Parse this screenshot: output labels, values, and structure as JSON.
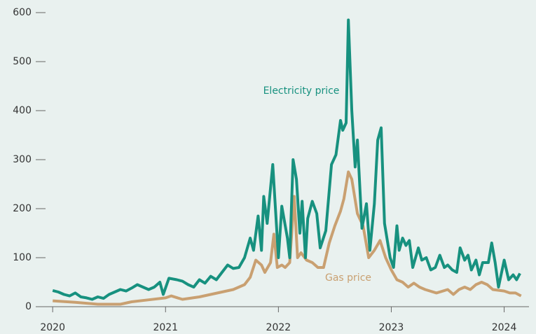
{
  "chart_data": {
    "type": "line",
    "annotations": [
      "Electricity price",
      "Gas price"
    ],
    "xlim": [
      2019.85,
      2024.22
    ],
    "xticks": [
      2020,
      2021,
      2022,
      2023,
      2024
    ],
    "ylim": [
      0,
      600
    ],
    "yticks": [
      0,
      100,
      200,
      300,
      400,
      500,
      600
    ],
    "series": [
      {
        "name": "Electricity price",
        "color": "#17917f",
        "x": [
          2020.0,
          2020.05,
          2020.1,
          2020.15,
          2020.2,
          2020.25,
          2020.3,
          2020.35,
          2020.4,
          2020.45,
          2020.5,
          2020.55,
          2020.6,
          2020.65,
          2020.7,
          2020.75,
          2020.8,
          2020.85,
          2020.9,
          2020.95,
          2020.98,
          2021.03,
          2021.1,
          2021.15,
          2021.2,
          2021.25,
          2021.3,
          2021.35,
          2021.4,
          2021.45,
          2021.5,
          2021.55,
          2021.6,
          2021.65,
          2021.7,
          2021.75,
          2021.78,
          2021.82,
          2021.85,
          2021.87,
          2021.9,
          2021.95,
          2022.0,
          2022.03,
          2022.08,
          2022.1,
          2022.13,
          2022.16,
          2022.19,
          2022.21,
          2022.24,
          2022.26,
          2022.3,
          2022.34,
          2022.37,
          2022.42,
          2022.47,
          2022.51,
          2022.55,
          2022.57,
          2022.6,
          2022.62,
          2022.65,
          2022.68,
          2022.7,
          2022.74,
          2022.78,
          2022.81,
          2022.85,
          2022.88,
          2022.91,
          2022.94,
          2022.99,
          2023.02,
          2023.05,
          2023.07,
          2023.1,
          2023.13,
          2023.16,
          2023.19,
          2023.24,
          2023.27,
          2023.31,
          2023.35,
          2023.39,
          2023.43,
          2023.47,
          2023.5,
          2023.54,
          2023.58,
          2023.61,
          2023.65,
          2023.68,
          2023.71,
          2023.75,
          2023.78,
          2023.81,
          2023.86,
          2023.89,
          2023.92,
          2023.95,
          2024.0,
          2024.04,
          2024.08,
          2024.11,
          2024.14
        ],
        "values": [
          33,
          30,
          25,
          22,
          28,
          20,
          18,
          15,
          20,
          17,
          25,
          30,
          35,
          32,
          38,
          45,
          40,
          35,
          40,
          50,
          25,
          58,
          55,
          52,
          45,
          40,
          55,
          48,
          62,
          55,
          70,
          85,
          78,
          80,
          100,
          140,
          115,
          185,
          115,
          225,
          170,
          290,
          100,
          205,
          140,
          100,
          300,
          260,
          150,
          215,
          100,
          180,
          215,
          190,
          120,
          155,
          290,
          310,
          380,
          360,
          375,
          585,
          400,
          285,
          340,
          160,
          210,
          115,
          210,
          340,
          365,
          170,
          100,
          80,
          165,
          115,
          140,
          125,
          135,
          80,
          120,
          95,
          100,
          75,
          80,
          105,
          80,
          85,
          75,
          70,
          120,
          95,
          105,
          75,
          95,
          65,
          90,
          90,
          130,
          90,
          40,
          95,
          55,
          65,
          55,
          68
        ]
      },
      {
        "name": "Gas price",
        "color": "#c9a071",
        "x": [
          2020.0,
          2020.2,
          2020.4,
          2020.6,
          2020.7,
          2020.85,
          2021.0,
          2021.05,
          2021.15,
          2021.3,
          2021.5,
          2021.6,
          2021.7,
          2021.75,
          2021.8,
          2021.85,
          2021.88,
          2021.93,
          2021.96,
          2021.99,
          2022.03,
          2022.06,
          2022.1,
          2022.14,
          2022.17,
          2022.2,
          2022.25,
          2022.3,
          2022.35,
          2022.4,
          2022.45,
          2022.5,
          2022.55,
          2022.58,
          2022.62,
          2022.65,
          2022.7,
          2022.75,
          2022.8,
          2022.85,
          2022.9,
          2022.95,
          2023.0,
          2023.05,
          2023.1,
          2023.15,
          2023.2,
          2023.25,
          2023.3,
          2023.4,
          2023.5,
          2023.55,
          2023.6,
          2023.65,
          2023.7,
          2023.75,
          2023.8,
          2023.85,
          2023.9,
          2024.0,
          2024.05,
          2024.1,
          2024.15
        ],
        "values": [
          12,
          9,
          5,
          5,
          10,
          14,
          18,
          22,
          15,
          20,
          30,
          35,
          45,
          60,
          95,
          85,
          70,
          90,
          148,
          80,
          85,
          80,
          90,
          225,
          100,
          110,
          95,
          90,
          80,
          80,
          130,
          165,
          195,
          220,
          275,
          260,
          190,
          165,
          100,
          115,
          135,
          100,
          75,
          55,
          50,
          40,
          48,
          40,
          35,
          28,
          35,
          25,
          35,
          40,
          35,
          45,
          50,
          45,
          35,
          32,
          28,
          28,
          22
        ]
      }
    ]
  }
}
